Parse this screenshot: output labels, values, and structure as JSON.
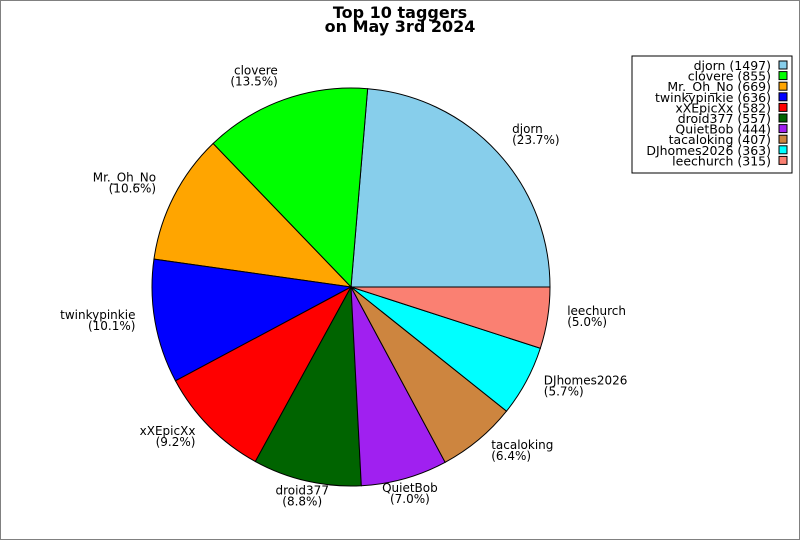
{
  "chart_data": {
    "type": "pie",
    "title": [
      "Top 10 taggers",
      "on May 3rd 2024"
    ],
    "start_angle_deg": 0,
    "direction": "counterclockwise",
    "legend_position": "top-right",
    "slices": [
      {
        "name": "djorn",
        "value": 1497,
        "percent_label": "(23.7%)",
        "legend_label": "djorn (1497)",
        "color": "#87ceeb"
      },
      {
        "name": "clovere",
        "value": 855,
        "percent_label": "(13.5%)",
        "legend_label": "clovere (855)",
        "color": "#00ff00"
      },
      {
        "name": "Mr._Oh_No",
        "value": 669,
        "percent_label": "(10.6%)",
        "legend_label": "Mr._Oh_No (669)",
        "color": "#ffa500"
      },
      {
        "name": "twinkypinkie",
        "value": 636,
        "percent_label": "(10.1%)",
        "legend_label": "twinkypinkie (636)",
        "color": "#0000ff"
      },
      {
        "name": "xXEpicXx",
        "value": 582,
        "percent_label": "(9.2%)",
        "legend_label": "xXEpicXx (582)",
        "color": "#ff0000"
      },
      {
        "name": "droid377",
        "value": 557,
        "percent_label": "(8.8%)",
        "legend_label": "droid377 (557)",
        "color": "#006400"
      },
      {
        "name": "QuietBob",
        "value": 444,
        "percent_label": "(7.0%)",
        "legend_label": "QuietBob (444)",
        "color": "#a020f0"
      },
      {
        "name": "tacaloking",
        "value": 407,
        "percent_label": "(6.4%)",
        "legend_label": "tacaloking (407)",
        "color": "#cd853f"
      },
      {
        "name": "DJhomes2026",
        "value": 363,
        "percent_label": "(5.7%)",
        "legend_label": "DJhomes2026 (363)",
        "color": "#00ffff"
      },
      {
        "name": "leechurch",
        "value": 315,
        "percent_label": "(5.0%)",
        "legend_label": "leechurch (315)",
        "color": "#fa8072"
      }
    ]
  }
}
